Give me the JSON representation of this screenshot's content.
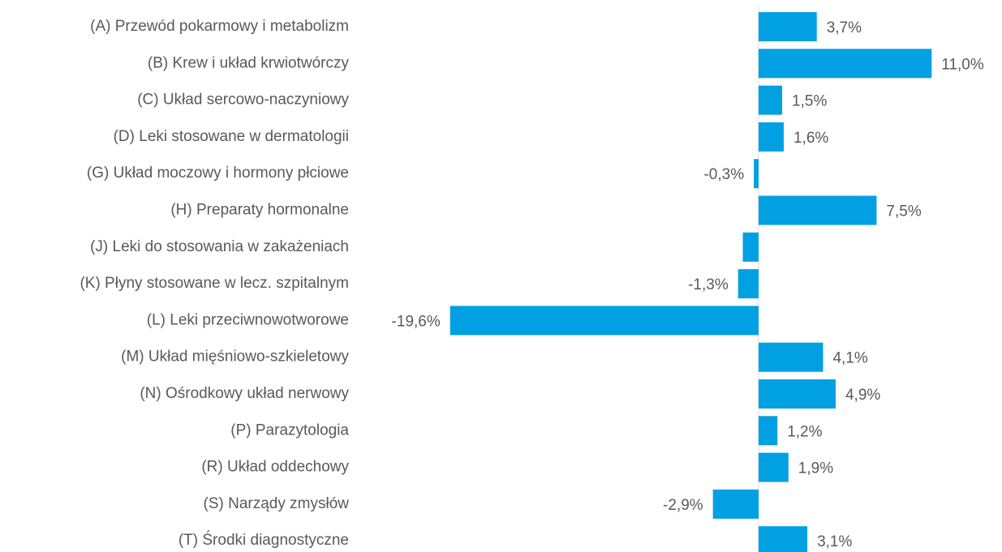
{
  "chart_data": {
    "type": "barh",
    "categories": [
      "(A) Przewód pokarmowy i metabolizm",
      "(B) Krew i układ krwiotwórczy",
      "(C) Układ sercowo-naczyniowy",
      "(D) Leki stosowane w dermatologii",
      "(G) Układ moczowy i hormony płciowe",
      "(H) Preparaty hormonalne",
      "(J) Leki do stosowania w zakażeniach",
      "(K) Płyny stosowane w lecz. szpitalnym",
      "(L) Leki przeciwnowotworowe",
      "(M) Układ mięśniowo-szkieletowy",
      "(N) Ośrodkowy układ nerwowy",
      "(P) Parazytologia",
      "(R) Układ oddechowy",
      "(S) Narządy zmysłów",
      "(T) Środki diagnostyczne"
    ],
    "values": [
      3.7,
      11.0,
      1.5,
      1.6,
      -0.3,
      7.5,
      -1.0,
      -1.3,
      -19.6,
      4.1,
      4.9,
      1.2,
      1.9,
      -2.9,
      3.1
    ],
    "value_labels": [
      "3,7%",
      "11,0%",
      "1,5%",
      "1,6%",
      "-0,3%",
      "7,5%",
      null,
      "-1,3%",
      "-19,6%",
      "4,1%",
      "4,9%",
      "1,2%",
      "1,9%",
      "-2,9%",
      "3,1%"
    ],
    "color": "#00a0e3",
    "xlim": [
      -20,
      11.5
    ]
  }
}
